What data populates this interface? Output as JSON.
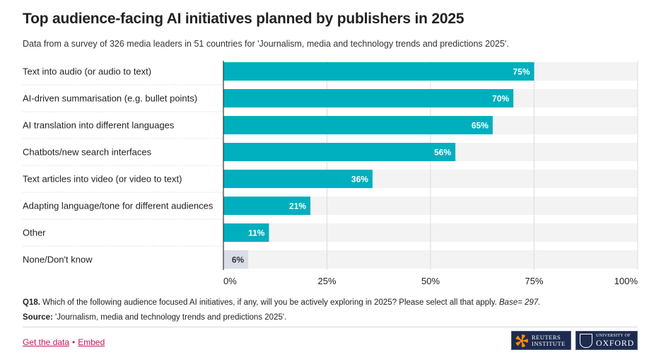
{
  "title": "Top audience-facing AI initiatives planned by publishers in 2025",
  "subtitle": "Data from a survey of 326 media leaders in 51 countries for 'Journalism, media and technology trends and predictions 2025'.",
  "chart_data": {
    "type": "bar",
    "orientation": "horizontal",
    "categories": [
      "Text into audio (or audio to text)",
      "AI-driven summarisation (e.g. bullet points)",
      "AI translation into different languages",
      "Chatbots/new search interfaces",
      "Text articles into video (or video to text)",
      "Adapting language/tone for different audiences",
      "Other",
      "None/Don't know"
    ],
    "values": [
      75,
      70,
      65,
      56,
      36,
      21,
      11,
      6
    ],
    "value_labels": [
      "75%",
      "70%",
      "65%",
      "56%",
      "36%",
      "21%",
      "11%",
      "6%"
    ],
    "xlim": [
      0,
      100
    ],
    "xticks": [
      0,
      25,
      50,
      75,
      100
    ],
    "xtick_labels": [
      "0%",
      "25%",
      "50%",
      "75%",
      "100%"
    ],
    "grid": true,
    "colors": {
      "bar": "#00afbe",
      "bar_none": "#d9dde6",
      "track": "#f3f3f3",
      "label_on_bar": "#ffffff",
      "label_on_light": "#333333"
    }
  },
  "footnote": {
    "question_id": "Q18.",
    "question_text": " Which of the following audience focused AI initiatives, if any, will you be actively exploring in 2025? Please select all that apply. ",
    "base": "Base= 297."
  },
  "source": {
    "label": "Source:",
    "text": " 'Journalism, media and technology trends and predictions 2025'."
  },
  "links": {
    "get_data": "Get the data",
    "separator": "•",
    "embed": "Embed"
  },
  "logos": {
    "reuters_line1": "REUTERS",
    "reuters_line2": "INSTITUTE",
    "oxford_line1": "UNIVERSITY OF",
    "oxford_line2": "OXFORD"
  }
}
